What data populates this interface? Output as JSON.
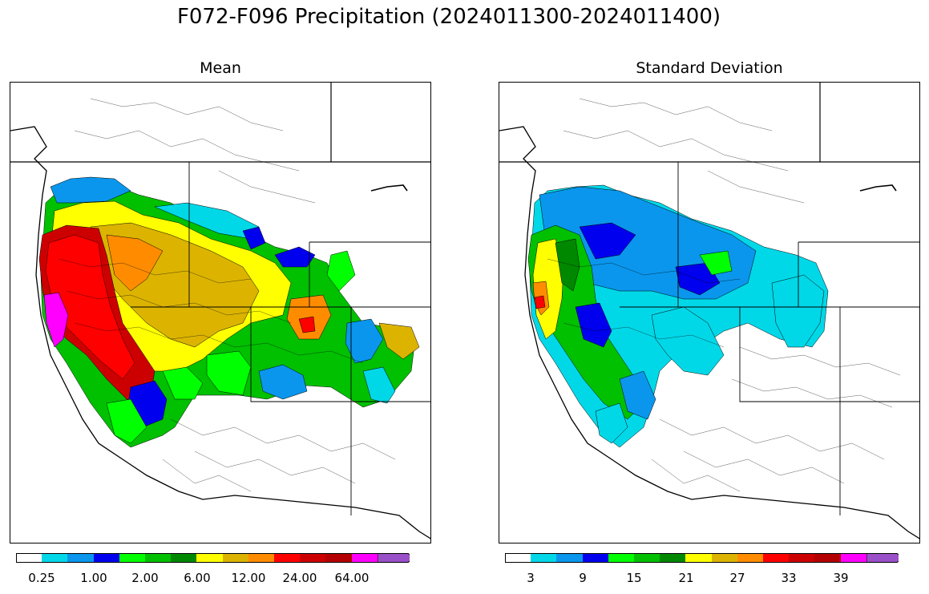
{
  "title": "F072-F096 Precipitation (2024011300-2024011400)",
  "panels": [
    {
      "title": "Mean",
      "colorbar": {
        "colors": [
          "#ffffff",
          "#00d8e8",
          "#0a96ec",
          "#0000ee",
          "#00ff00",
          "#00c000",
          "#008800",
          "#ffff00",
          "#dcb400",
          "#ff8c00",
          "#ff0000",
          "#cc0000",
          "#b40000",
          "#ff00ff",
          "#9a50c8"
        ],
        "tick_labels": [
          "0.25",
          "1.00",
          "2.00",
          "6.00",
          "12.00",
          "24.00",
          "64.00"
        ],
        "extend": "max"
      }
    },
    {
      "title": "Standard Deviation",
      "colorbar": {
        "colors": [
          "#ffffff",
          "#00d8e8",
          "#0a96ec",
          "#0000ee",
          "#00ff00",
          "#00c000",
          "#008800",
          "#ffff00",
          "#dcb400",
          "#ff8c00",
          "#ff0000",
          "#cc0000",
          "#b40000",
          "#ff00ff",
          "#9a50c8"
        ],
        "tick_labels": [
          "3",
          "9",
          "15",
          "21",
          "27",
          "33",
          "39"
        ],
        "extend": "max"
      }
    }
  ]
}
